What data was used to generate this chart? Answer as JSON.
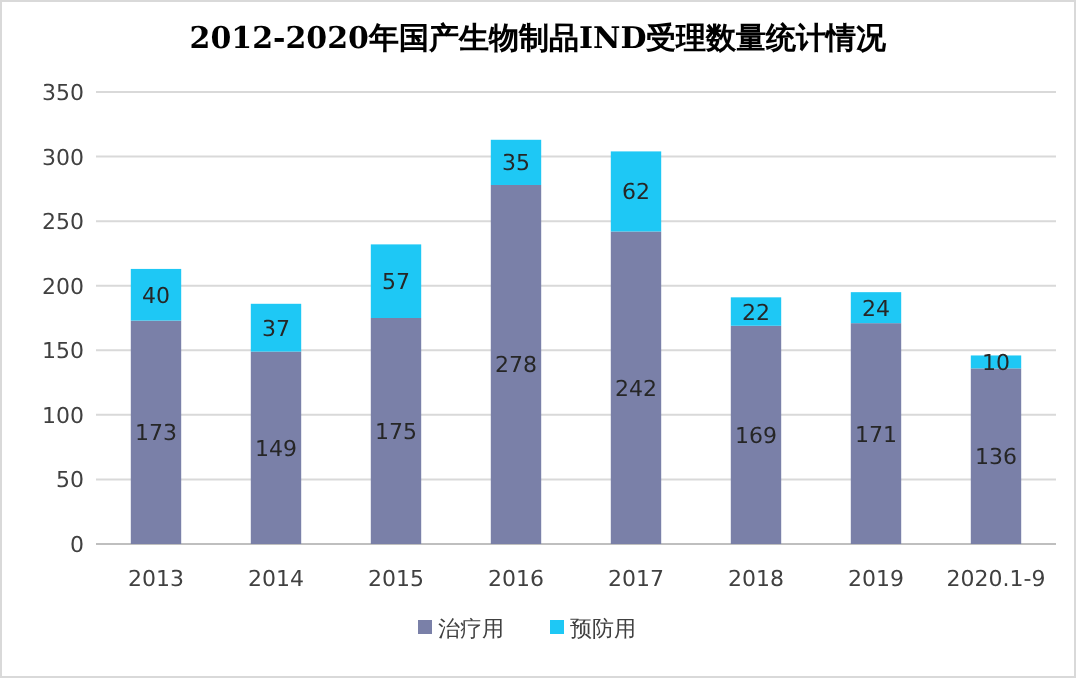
{
  "chart_data": {
    "type": "bar",
    "title": "2012-2020年国产生物制品IND受理数量统计情况",
    "categories": [
      "2013",
      "2014",
      "2015",
      "2016",
      "2017",
      "2018",
      "2019",
      "2020.1-9"
    ],
    "stacked": true,
    "data_labels": true,
    "grid": "y",
    "legend": "bottom",
    "ylim": [
      0,
      350
    ],
    "yticks": [
      0,
      50,
      100,
      150,
      200,
      250,
      300,
      350
    ],
    "series": [
      {
        "name": "治疗用",
        "color": "#7a80a8",
        "values": [
          173,
          149,
          175,
          278,
          242,
          169,
          171,
          136
        ]
      },
      {
        "name": "预防用",
        "color": "#1ec8f5",
        "values": [
          40,
          37,
          57,
          35,
          62,
          22,
          24,
          10
        ]
      }
    ]
  }
}
